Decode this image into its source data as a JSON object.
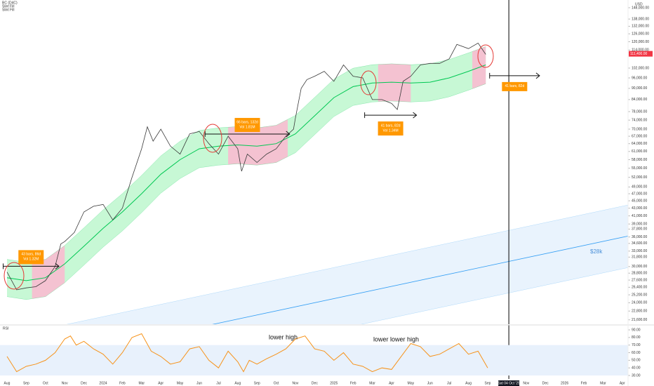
{
  "chart_data": [
    {
      "type": "line",
      "legend_lines": [
        "BC (D4C)",
        "Slint Fill",
        "Slint Fill"
      ],
      "currency": "USD",
      "log_scale": true,
      "xlim": [
        -0.365,
        32.3
      ],
      "ylim": [
        21020,
        155200
      ],
      "xticks": [
        {
          "value": 0,
          "label": "Aug"
        },
        {
          "value": 1,
          "label": "Sep"
        },
        {
          "value": 2,
          "label": "Oct"
        },
        {
          "value": 3,
          "label": "Nov"
        },
        {
          "value": 4,
          "label": "Dec"
        },
        {
          "value": 5,
          "label": "2024"
        },
        {
          "value": 6,
          "label": "Feb"
        },
        {
          "value": 7,
          "label": "Mar"
        },
        {
          "value": 8,
          "label": "Apr"
        },
        {
          "value": 9,
          "label": "May"
        },
        {
          "value": 10,
          "label": "Jun"
        },
        {
          "value": 11,
          "label": "Jul"
        },
        {
          "value": 12,
          "label": "Aug"
        },
        {
          "value": 13,
          "label": "Sep"
        },
        {
          "value": 14,
          "label": "Oct"
        },
        {
          "value": 15,
          "label": "Nov"
        },
        {
          "value": 16,
          "label": "Dec"
        },
        {
          "value": 17,
          "label": "2025"
        },
        {
          "value": 18,
          "label": "Feb"
        },
        {
          "value": 19,
          "label": "Mar"
        },
        {
          "value": 20,
          "label": "Apr"
        },
        {
          "value": 21,
          "label": "May"
        },
        {
          "value": 22,
          "label": "Jun"
        },
        {
          "value": 23,
          "label": "Jul"
        },
        {
          "value": 24,
          "label": "Aug"
        },
        {
          "value": 25,
          "label": "Sep"
        },
        {
          "value": 27,
          "label": "Nov"
        },
        {
          "value": 28,
          "label": "Dec"
        },
        {
          "value": 29,
          "label": "2026"
        },
        {
          "value": 30,
          "label": "Feb"
        },
        {
          "value": 31,
          "label": "Mar"
        },
        {
          "value": 32,
          "label": "Apr"
        }
      ],
      "crosshair": {
        "value": 26.1,
        "label": "Sat 04 Oct '25"
      },
      "yticks": [
        {
          "value": 148000,
          "label": "148,000.00"
        },
        {
          "value": 138000,
          "label": "138,000.00"
        },
        {
          "value": 132000,
          "label": "132,000.00"
        },
        {
          "value": 126000,
          "label": "126,000.00"
        },
        {
          "value": 120000,
          "label": "120,000.00"
        },
        {
          "value": 114000,
          "label": "114,000.00"
        },
        {
          "value": 102000,
          "label": "102,000.00"
        },
        {
          "value": 96000,
          "label": "96,000.00"
        },
        {
          "value": 90000,
          "label": "90,000.00"
        },
        {
          "value": 84000,
          "label": "84,000.00"
        },
        {
          "value": 78000,
          "label": "78,000.00"
        },
        {
          "value": 74000,
          "label": "74,000.00"
        },
        {
          "value": 70000,
          "label": "70,000.00"
        },
        {
          "value": 67000,
          "label": "67,000.00"
        },
        {
          "value": 64000,
          "label": "64,000.00"
        },
        {
          "value": 61000,
          "label": "61,000.00"
        },
        {
          "value": 58000,
          "label": "58,000.00"
        },
        {
          "value": 55000,
          "label": "55,000.00"
        },
        {
          "value": 52000,
          "label": "52,000.00"
        },
        {
          "value": 49000,
          "label": "49,000.00"
        },
        {
          "value": 47000,
          "label": "47,000.00"
        },
        {
          "value": 45000,
          "label": "45,000.00"
        },
        {
          "value": 43000,
          "label": "43,000.00"
        },
        {
          "value": 41000,
          "label": "41,000.00"
        },
        {
          "value": 39000,
          "label": "39,000.00"
        },
        {
          "value": 37800,
          "label": "37,800.00"
        },
        {
          "value": 36000,
          "label": "36,000.00"
        },
        {
          "value": 34600,
          "label": "34,600.00"
        },
        {
          "value": 33000,
          "label": "33,000.00"
        },
        {
          "value": 31800,
          "label": "31,800.00"
        },
        {
          "value": 30000,
          "label": "30,000.00"
        },
        {
          "value": 28800,
          "label": "28,800.00"
        },
        {
          "value": 27600,
          "label": "27,600.00"
        },
        {
          "value": 26400,
          "label": "26,400.00"
        },
        {
          "value": 25200,
          "label": "25,200.00"
        },
        {
          "value": 24000,
          "label": "24,000.00"
        },
        {
          "value": 22800,
          "label": "22,800.00"
        },
        {
          "value": 21600,
          "label": "21,600.00"
        }
      ],
      "price_tag": {
        "value": 111400,
        "label": "111,400.00",
        "color": "#f23645"
      },
      "price": {
        "color": "#3a3a3a",
        "x": [
          0,
          0.5,
          1,
          1.5,
          2,
          2.5,
          2.8,
          3,
          3.5,
          4,
          4.5,
          5,
          5.5,
          6,
          6.5,
          7,
          7.3,
          7.6,
          8,
          8.5,
          9,
          9.5,
          10,
          10.5,
          11,
          11.5,
          12,
          12.2,
          12.5,
          13,
          13.5,
          14,
          14.5,
          14.9,
          15,
          15.3,
          15.6,
          16,
          16.5,
          17,
          17.5,
          18,
          18.5,
          19,
          19.5,
          20,
          20.3,
          20.6,
          21,
          21.5,
          22,
          22.5,
          23,
          23.4,
          24,
          24.5,
          24.9
        ],
        "values": [
          29000,
          26000,
          26300,
          26500,
          27500,
          30000,
          34500,
          35000,
          37000,
          42000,
          43500,
          44000,
          40000,
          43000,
          52000,
          62000,
          71000,
          65000,
          70000,
          63000,
          60000,
          68000,
          69000,
          64000,
          60000,
          67000,
          62000,
          54000,
          60000,
          57000,
          60000,
          62000,
          67000,
          70000,
          75000,
          90000,
          95000,
          97000,
          100000,
          94000,
          104000,
          97000,
          96000,
          84000,
          84000,
          82000,
          79000,
          94000,
          97000,
          104000,
          105000,
          105000,
          108000,
          118000,
          115000,
          119000,
          111000
        ]
      },
      "band": {
        "color": "#00c853",
        "fill": "#b9f6ca",
        "alt_fill": "#f8bbd0",
        "alt_line": "#e53950",
        "x": [
          0,
          1,
          2,
          3,
          4,
          5,
          6,
          7,
          8,
          9,
          10,
          11,
          12,
          13,
          14,
          15,
          16,
          17,
          18,
          19,
          20,
          21,
          22,
          23,
          24,
          24.9
        ],
        "center": [
          28000,
          27500,
          28000,
          30500,
          34000,
          38000,
          42000,
          47000,
          53000,
          58000,
          62000,
          63000,
          63500,
          63000,
          64000,
          68000,
          76000,
          85000,
          91000,
          93000,
          93500,
          93000,
          93500,
          96000,
          100000,
          104000
        ],
        "upper": [
          31360,
          30800,
          31360,
          34160,
          38080,
          42560,
          47040,
          52640,
          59360,
          64960,
          69440,
          70560,
          71120,
          70560,
          71680,
          76160,
          85120,
          95200,
          101920,
          104160,
          104720,
          104160,
          104720,
          107520,
          112000,
          116480
        ],
        "lower": [
          24920,
          24475,
          24920,
          27145,
          30260,
          33820,
          37380,
          41830,
          47170,
          51620,
          55180,
          56070,
          56515,
          56070,
          56960,
          60520,
          67640,
          75650,
          80990,
          82770,
          83215,
          82770,
          83215,
          85440,
          89000,
          92560
        ],
        "alt_zones": [
          [
            1.3,
            3
          ],
          [
            11.5,
            14.6
          ],
          [
            19.3,
            21
          ],
          [
            24.2,
            24.9
          ]
        ]
      },
      "channel": {
        "color": "#2196f3",
        "fill": "#e3f0fd",
        "x": [
          3.1,
          32.3
        ],
        "upper": [
          21000,
          43850
        ],
        "center": [
          17340,
          36200
        ],
        "lower": [
          14270,
          29800
        ],
        "label": "$28k"
      },
      "ranges": [
        {
          "x": [
            -0.2,
            2.7
          ],
          "y": 30050,
          "box": "above",
          "lines": [
            "43 bars, 86d",
            "Vol 1.32M"
          ]
        },
        {
          "x": [
            10.3,
            14.7
          ],
          "y": 67900,
          "box": "above",
          "lines": [
            "66 bars, 132d",
            "Vol 1.81M"
          ]
        },
        {
          "x": [
            18.6,
            21.3
          ],
          "y": 76300,
          "box": "below",
          "lines": [
            "41 bars, 82d",
            "Vol 1.34M"
          ]
        },
        {
          "x": [
            25.1,
            27.7
          ],
          "y": 97300,
          "box": "below",
          "lines": [
            "41 bars, 82d"
          ]
        }
      ],
      "range_color": "#ff9800"
    },
    {
      "type": "line",
      "title": "RSI",
      "ylim": [
        25.4,
        96.5
      ],
      "yticks": [
        {
          "value": 90,
          "label": "90.00"
        },
        {
          "value": 80,
          "label": "80.00"
        },
        {
          "value": 70,
          "label": "70.00"
        },
        {
          "value": 60,
          "label": "60.00"
        },
        {
          "value": 50,
          "label": "50.00"
        },
        {
          "value": 40,
          "label": "40.00"
        },
        {
          "value": 30,
          "label": "30.00"
        }
      ],
      "band": [
        30,
        70
      ],
      "band_fill": "#e8f1fc",
      "annotations": [
        "lower high",
        "lower lower high"
      ],
      "series": [
        {
          "color": "#f7931a",
          "x": [
            0,
            0.5,
            1,
            1.5,
            2,
            2.5,
            3,
            3.3,
            3.6,
            4,
            4.5,
            5,
            5.5,
            6,
            6.5,
            7,
            7.5,
            8,
            8.5,
            9,
            9.5,
            10,
            10.5,
            11,
            11.5,
            12,
            12.3,
            12.6,
            13,
            13.5,
            14,
            14.5,
            15,
            15.5,
            16,
            16.5,
            17,
            17.5,
            18,
            18.5,
            19,
            19.5,
            20,
            20.5,
            21,
            21.5,
            22,
            22.5,
            23,
            23.5,
            24,
            24.5,
            25
          ],
          "values": [
            55,
            35,
            42,
            45,
            50,
            60,
            78,
            82,
            70,
            75,
            65,
            58,
            45,
            60,
            80,
            85,
            62,
            55,
            45,
            48,
            65,
            68,
            50,
            40,
            62,
            48,
            35,
            50,
            45,
            52,
            58,
            65,
            78,
            82,
            65,
            62,
            50,
            60,
            45,
            42,
            35,
            40,
            38,
            55,
            72,
            68,
            55,
            58,
            65,
            72,
            58,
            62,
            40
          ]
        }
      ]
    }
  ]
}
